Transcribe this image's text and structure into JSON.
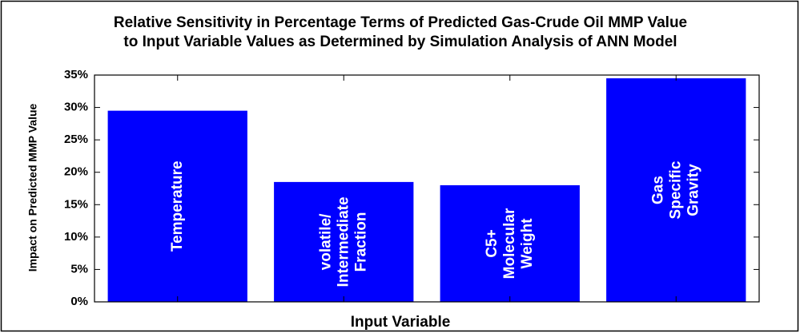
{
  "chart_data": {
    "type": "bar",
    "title": [
      "Relative Sensitivity in Percentage Terms of Predicted  Gas-Crude Oil MMP Value",
      "to Input Variable Values as Determined by Simulation Analysis of ANN Model"
    ],
    "x_label": "Input Variable",
    "y_label": "Impact on Predicted MMP Value",
    "categories": [
      [
        "Temperature"
      ],
      [
        "volatile/",
        "Intermediate",
        "Fraction"
      ],
      [
        "C5+",
        "Molecular",
        "Weight"
      ],
      [
        "Gas",
        "Specific",
        "Gravity"
      ]
    ],
    "values": [
      29.5,
      18.5,
      18,
      34.5
    ],
    "color": "#0000ff",
    "ylim": [
      0,
      35
    ],
    "yticks": [
      {
        "value": 0,
        "label": "0%"
      },
      {
        "value": 5,
        "label": "5%"
      },
      {
        "value": 10,
        "label": "10%"
      },
      {
        "value": 15,
        "label": "15%"
      },
      {
        "value": 20,
        "label": "20%"
      },
      {
        "value": 25,
        "label": "25%"
      },
      {
        "value": 30,
        "label": "30%"
      },
      {
        "value": 35,
        "label": "35%"
      }
    ]
  }
}
